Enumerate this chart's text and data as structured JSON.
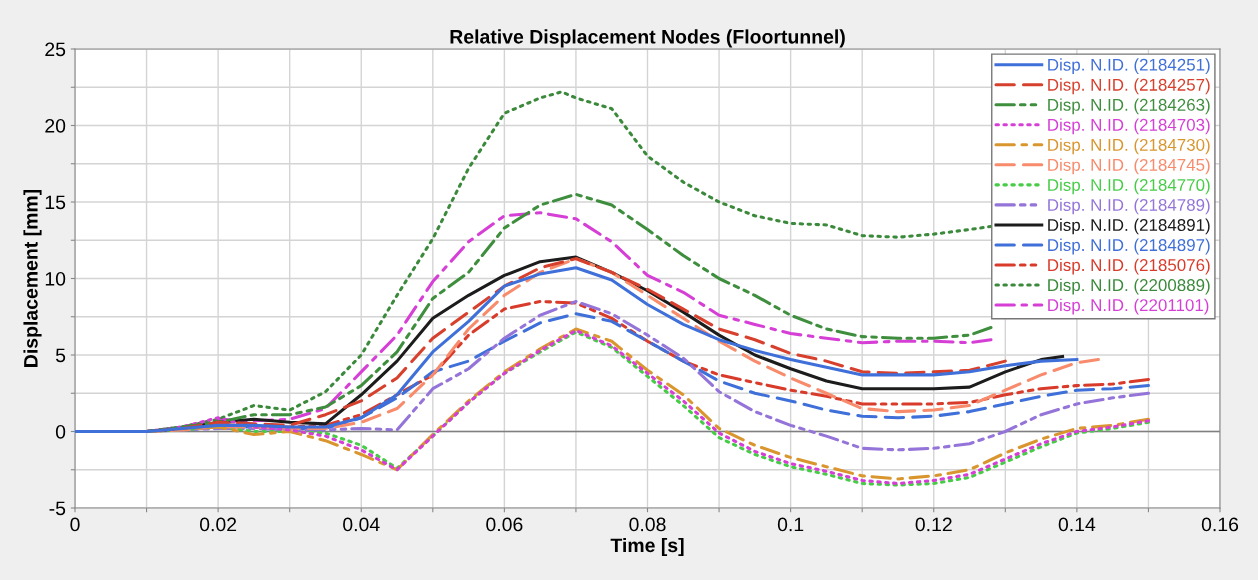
{
  "chart_data": {
    "type": "line",
    "title": "Relative Displacement Nodes (Floortunnel)",
    "xlabel": "Time [s]",
    "ylabel": "Displacement [mm]",
    "x": [
      0,
      0.01,
      0.015,
      0.02,
      0.025,
      0.03,
      0.035,
      0.04,
      0.045,
      0.05,
      0.055,
      0.06,
      0.065,
      0.07,
      0.075,
      0.08,
      0.085,
      0.09,
      0.095,
      0.1,
      0.105,
      0.11,
      0.115,
      0.12,
      0.125,
      0.13,
      0.135,
      0.14,
      0.145,
      0.15
    ],
    "xlim": [
      0,
      0.16
    ],
    "ylim": [
      -5,
      25
    ],
    "xticks": [
      0,
      {
        "value": 0.01,
        "label": null
      },
      0.02,
      {
        "value": 0.03,
        "label": null
      },
      0.04,
      {
        "value": 0.05,
        "label": null
      },
      0.06,
      {
        "value": 0.07,
        "label": null
      },
      0.08,
      {
        "value": 0.09,
        "label": null
      },
      0.1,
      {
        "value": 0.11,
        "label": null
      },
      0.12,
      {
        "value": 0.13,
        "label": null
      },
      0.14,
      {
        "value": 0.15,
        "label": null
      },
      0.16
    ],
    "yticks": [
      -5,
      {
        "value": -2.5,
        "label": null
      },
      0,
      {
        "value": 2.5,
        "label": null
      },
      5,
      {
        "value": 7.5,
        "label": null
      },
      10,
      {
        "value": 12.5,
        "label": null
      },
      15,
      {
        "value": 17.5,
        "label": null
      },
      20,
      {
        "value": 22.5,
        "label": null
      },
      25
    ],
    "grid": true,
    "legend": "top right",
    "ref_lines": [
      {
        "axis": "y",
        "value": 0,
        "color": "#7f7f7f"
      }
    ],
    "series": [
      {
        "name": "Disp. N.ID. (2184251)",
        "color": "#3f6fd8",
        "line_style": "solid",
        "x": [
          0,
          0.01,
          0.015,
          0.02,
          0.025,
          0.03,
          0.035,
          0.04,
          0.045,
          0.05,
          0.055,
          0.06,
          0.065,
          0.07,
          0.075,
          0.08,
          0.085,
          0.09,
          0.095,
          0.1,
          0.105,
          0.11,
          0.115,
          0.12,
          0.125,
          0.13,
          0.135,
          0.14
        ],
        "values": [
          0,
          0,
          0.2,
          0.4,
          0.4,
          0.3,
          0.3,
          0.9,
          2.4,
          5.2,
          7.2,
          9.5,
          10.3,
          10.7,
          9.9,
          8.3,
          7.0,
          6.0,
          5.3,
          4.7,
          4.2,
          3.7,
          3.7,
          3.7,
          3.9,
          4.3,
          4.6,
          4.7
        ]
      },
      {
        "name": "Disp. N.ID. (2184257)",
        "color": "#d8402e",
        "line_style": "dashed",
        "x": [
          0,
          0.01,
          0.015,
          0.02,
          0.025,
          0.03,
          0.035,
          0.04,
          0.045,
          0.05,
          0.055,
          0.06,
          0.065,
          0.07,
          0.075,
          0.08,
          0.085,
          0.09,
          0.095,
          0.1,
          0.105,
          0.11,
          0.115,
          0.12,
          0.125,
          0.13
        ],
        "values": [
          0,
          0,
          0.2,
          0.6,
          0.5,
          0.4,
          1.1,
          2.0,
          3.5,
          6.1,
          7.8,
          9.5,
          10.7,
          11.3,
          10.4,
          9.3,
          8.0,
          6.7,
          6.0,
          5.1,
          4.6,
          3.9,
          3.8,
          3.9,
          4.0,
          4.6
        ]
      },
      {
        "name": "Disp. N.ID. (2184263)",
        "color": "#3e8e3e",
        "line_style": "dashdotdot",
        "x": [
          0,
          0.01,
          0.015,
          0.02,
          0.025,
          0.03,
          0.035,
          0.04,
          0.045,
          0.05,
          0.055,
          0.06,
          0.065,
          0.07,
          0.075,
          0.08,
          0.085,
          0.09,
          0.095,
          0.1,
          0.105,
          0.11,
          0.115,
          0.12,
          0.125,
          0.128
        ],
        "values": [
          0,
          0,
          0.3,
          0.6,
          1.1,
          1.1,
          1.6,
          3.0,
          5.2,
          8.7,
          10.4,
          13.3,
          14.8,
          15.5,
          14.8,
          13.2,
          11.5,
          10.0,
          8.9,
          7.6,
          6.7,
          6.2,
          6.1,
          6.1,
          6.3,
          6.8
        ]
      },
      {
        "name": "Disp. N.ID. (2184703)",
        "color": "#d63fd6",
        "line_style": "dotted",
        "values": [
          0,
          0,
          0.3,
          0.9,
          0.3,
          0.1,
          -0.3,
          -1.2,
          -2.5,
          -0.3,
          1.9,
          3.8,
          5.3,
          6.6,
          5.6,
          3.8,
          2.0,
          -0.1,
          -1.3,
          -2.1,
          -2.6,
          -3.2,
          -3.4,
          -3.2,
          -2.8,
          -1.8,
          -0.8,
          0.0,
          0.3,
          0.7
        ]
      },
      {
        "name": "Disp. N.ID. (2184730)",
        "color": "#d9962e",
        "line_style": "dashdot",
        "values": [
          0,
          0,
          0.2,
          0.3,
          -0.2,
          0,
          -0.6,
          -1.5,
          -2.5,
          -0.2,
          2.0,
          3.9,
          5.4,
          6.7,
          5.9,
          4.0,
          2.4,
          0.2,
          -0.9,
          -1.7,
          -2.3,
          -2.9,
          -3.1,
          -2.9,
          -2.5,
          -1.4,
          -0.5,
          0.2,
          0.4,
          0.8
        ]
      },
      {
        "name": "Disp. N.ID. (2184745)",
        "color": "#f78b6c",
        "line_style": "dashed",
        "x": [
          0,
          0.01,
          0.015,
          0.02,
          0.025,
          0.03,
          0.035,
          0.04,
          0.045,
          0.05,
          0.055,
          0.06,
          0.065,
          0.07,
          0.075,
          0.08,
          0.085,
          0.09,
          0.095,
          0.1,
          0.105,
          0.11,
          0.115,
          0.12,
          0.125,
          0.13,
          0.135,
          0.14,
          0.143
        ],
        "values": [
          0,
          0,
          0.1,
          0.3,
          0.3,
          0.2,
          0.2,
          0.6,
          1.5,
          3.7,
          6.7,
          8.9,
          10.4,
          11.3,
          10.4,
          8.9,
          7.4,
          5.9,
          4.6,
          3.5,
          2.5,
          1.5,
          1.3,
          1.4,
          1.7,
          2.7,
          3.7,
          4.5,
          4.7
        ]
      },
      {
        "name": "Disp. N.ID. (2184770)",
        "color": "#47cc47",
        "line_style": "dotted",
        "values": [
          0,
          0,
          0.1,
          0.3,
          0.0,
          0.0,
          -0.1,
          -0.9,
          -2.4,
          -0.3,
          1.9,
          3.8,
          5.2,
          6.5,
          5.5,
          3.6,
          1.7,
          -0.4,
          -1.5,
          -2.3,
          -2.8,
          -3.4,
          -3.5,
          -3.4,
          -3.0,
          -2.0,
          -1.0,
          -0.1,
          0.2,
          0.6
        ]
      },
      {
        "name": "Disp. N.ID. (2184789)",
        "color": "#9474d9",
        "line_style": "dashdotdot",
        "values": [
          0,
          0,
          0.1,
          0.2,
          0.2,
          0.1,
          0.1,
          0.2,
          0.1,
          2.8,
          4.1,
          6.1,
          7.6,
          8.5,
          7.7,
          6.3,
          4.8,
          2.6,
          1.3,
          0.4,
          -0.3,
          -1.1,
          -1.2,
          -1.1,
          -0.8,
          0,
          1.1,
          1.8,
          2.2,
          2.5
        ]
      },
      {
        "name": "Disp. N.ID. (2184891)",
        "color": "#1c1c1c",
        "line_style": "solid",
        "x": [
          0,
          0.01,
          0.015,
          0.02,
          0.025,
          0.03,
          0.035,
          0.04,
          0.045,
          0.05,
          0.055,
          0.06,
          0.065,
          0.07,
          0.075,
          0.08,
          0.085,
          0.09,
          0.095,
          0.1,
          0.105,
          0.11,
          0.115,
          0.12,
          0.125,
          0.13,
          0.135,
          0.138
        ],
        "values": [
          0,
          0,
          0.2,
          0.6,
          0.8,
          0.6,
          0.5,
          2.4,
          4.6,
          7.4,
          8.9,
          10.2,
          11.1,
          11.4,
          10.4,
          9.2,
          7.8,
          6.3,
          5.0,
          4.1,
          3.3,
          2.8,
          2.8,
          2.8,
          2.9,
          3.9,
          4.7,
          4.9
        ]
      },
      {
        "name": "Disp. N.ID. (2184897)",
        "color": "#3f6fd8",
        "line_style": "dashed",
        "values": [
          0,
          0,
          0.1,
          0.3,
          0.3,
          0.2,
          0.2,
          0.9,
          2.2,
          3.9,
          4.6,
          5.9,
          7.1,
          7.7,
          7.2,
          5.9,
          4.6,
          3.3,
          2.5,
          2.0,
          1.4,
          1.0,
          0.9,
          1.0,
          1.3,
          1.8,
          2.3,
          2.7,
          2.8,
          3.0
        ]
      },
      {
        "name": "Disp. N.ID. (2185076)",
        "color": "#d93b2b",
        "line_style": "dashdotdot",
        "values": [
          0,
          0,
          0.2,
          0.5,
          0.3,
          0.3,
          0.4,
          1.1,
          2.4,
          3.7,
          6.3,
          8.0,
          8.5,
          8.4,
          7.4,
          5.9,
          4.6,
          3.7,
          3.2,
          2.7,
          2.3,
          1.8,
          1.8,
          1.8,
          1.9,
          2.4,
          2.8,
          3.0,
          3.1,
          3.4
        ]
      },
      {
        "name": "Disp. N.ID. (2200889)",
        "color": "#3b8a3b",
        "line_style": "dotted",
        "x": [
          0,
          0.01,
          0.015,
          0.02,
          0.025,
          0.03,
          0.035,
          0.04,
          0.045,
          0.05,
          0.055,
          0.06,
          0.065,
          0.068,
          0.07,
          0.075,
          0.08,
          0.085,
          0.09,
          0.095,
          0.1,
          0.105,
          0.11,
          0.115,
          0.12,
          0.125,
          0.128
        ],
        "values": [
          0,
          0,
          0.3,
          0.8,
          1.7,
          1.4,
          2.6,
          5.0,
          8.9,
          12.6,
          17.2,
          20.8,
          21.8,
          22.2,
          21.8,
          21.1,
          18.0,
          16.3,
          15.0,
          14.1,
          13.6,
          13.5,
          12.8,
          12.7,
          12.9,
          13.2,
          13.4
        ]
      },
      {
        "name": "Disp. N.ID. (2201101)",
        "color": "#d63fd6",
        "line_style": "dashdot",
        "x": [
          0,
          0.01,
          0.015,
          0.02,
          0.025,
          0.03,
          0.035,
          0.04,
          0.045,
          0.05,
          0.055,
          0.06,
          0.065,
          0.07,
          0.075,
          0.08,
          0.085,
          0.09,
          0.095,
          0.1,
          0.105,
          0.11,
          0.115,
          0.12,
          0.125,
          0.128
        ],
        "values": [
          0,
          0,
          0.3,
          0.8,
          0.7,
          0.8,
          1.5,
          3.9,
          6.3,
          9.8,
          12.4,
          14.1,
          14.3,
          13.9,
          12.4,
          10.2,
          9.1,
          7.6,
          7.0,
          6.4,
          6.1,
          5.8,
          5.9,
          5.9,
          5.8,
          6.0
        ]
      }
    ]
  }
}
